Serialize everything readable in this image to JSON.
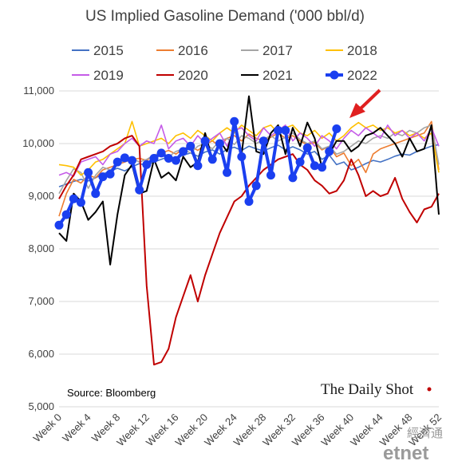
{
  "chart_data": {
    "type": "line",
    "title": "US Implied Gasoline Demand ('000 bbl/d)",
    "ylim": [
      5000,
      11000
    ],
    "yticks": [
      "5,000",
      "6,000",
      "7,000",
      "8,000",
      "9,000",
      "10,000",
      "11,000"
    ],
    "ytick_values": [
      5000,
      6000,
      7000,
      8000,
      9000,
      10000,
      11000
    ],
    "xlim": [
      0,
      52
    ],
    "xticks": [
      "Week 0",
      "Week 4",
      "Week 8",
      "Week 12",
      "Week 16",
      "Week 20",
      "Week 24",
      "Week 28",
      "Week 32",
      "Week 36",
      "Week 40",
      "Week 44",
      "Week 48",
      "Week 52"
    ],
    "xtick_values": [
      0,
      4,
      8,
      12,
      16,
      20,
      24,
      28,
      32,
      36,
      40,
      44,
      48,
      52
    ],
    "grid": "horizontal",
    "legend_position": "top",
    "source": "Source: Bloomberg",
    "brand": "The Daily Shot",
    "watermark": "etnet",
    "watermark_cn": "經濟通",
    "arrow_color": "#e02020",
    "series": [
      {
        "name": "2015",
        "color": "#4472c4",
        "width": 1.6,
        "marker": false,
        "values": [
          9180,
          9230,
          9280,
          9320,
          9290,
          9350,
          9420,
          9480,
          9530,
          9480,
          9560,
          9620,
          9580,
          9650,
          9700,
          9750,
          9720,
          9780,
          9820,
          9760,
          9840,
          9880,
          9800,
          9890,
          9930,
          9870,
          9950,
          9900,
          9860,
          9920,
          9970,
          9880,
          9940,
          9880,
          9800,
          9850,
          9700,
          9780,
          9600,
          9650,
          9500,
          9550,
          9620,
          9680,
          9650,
          9700,
          9760,
          9800,
          9780,
          9850,
          9900,
          9950,
          9980
        ]
      },
      {
        "name": "2016",
        "color": "#ed7d31",
        "width": 1.6,
        "marker": false,
        "values": [
          8620,
          9050,
          9320,
          9250,
          9400,
          9350,
          9500,
          9550,
          9600,
          9650,
          9700,
          9720,
          9680,
          9780,
          9820,
          9870,
          9800,
          9900,
          9950,
          9870,
          9980,
          10050,
          9950,
          10100,
          10150,
          10050,
          10180,
          10100,
          10050,
          10120,
          10200,
          10100,
          10150,
          10050,
          9980,
          10020,
          9880,
          9950,
          9750,
          9820,
          9580,
          9700,
          9450,
          9800,
          9900,
          9950,
          10000,
          10050,
          10100,
          10150,
          10200,
          10420,
          9500
        ]
      },
      {
        "name": "2017",
        "color": "#a5a5a5",
        "width": 1.6,
        "marker": false,
        "values": [
          9050,
          9300,
          9520,
          9450,
          9150,
          9400,
          9550,
          9500,
          9600,
          9680,
          9720,
          9650,
          9700,
          9780,
          9830,
          9750,
          9850,
          9900,
          9820,
          9950,
          10000,
          9900,
          10050,
          10100,
          9980,
          10150,
          10100,
          10000,
          10080,
          10150,
          10050,
          10120,
          10200,
          10080,
          10000,
          10050,
          9900,
          9950,
          9800,
          9850,
          9950,
          10050,
          10000,
          10100,
          10150,
          10100,
          10200,
          10150,
          10250,
          10200,
          10300,
          10350,
          9600
        ]
      },
      {
        "name": "2018",
        "color": "#ffc000",
        "width": 1.6,
        "marker": false,
        "values": [
          9600,
          9580,
          9550,
          9400,
          9500,
          9650,
          9700,
          9800,
          9900,
          10000,
          10420,
          9950,
          10000,
          10050,
          10100,
          10000,
          10150,
          10200,
          10100,
          10250,
          10150,
          10050,
          10200,
          10300,
          10200,
          10350,
          10250,
          10150,
          10300,
          10350,
          10200,
          10300,
          10350,
          10200,
          10150,
          10250,
          10100,
          10200,
          10050,
          10150,
          10300,
          10400,
          10300,
          10350,
          10250,
          10300,
          10200,
          10250,
          10150,
          10200,
          10100,
          10200,
          9450
        ]
      },
      {
        "name": "2019",
        "color": "#c55ce8",
        "width": 1.6,
        "marker": false,
        "values": [
          9400,
          9450,
          9380,
          9650,
          9700,
          9750,
          9600,
          9800,
          9850,
          10000,
          10100,
          9950,
          10050,
          10000,
          10350,
          9900,
          10050,
          10100,
          9950,
          10150,
          10000,
          10100,
          10200,
          9950,
          10250,
          10300,
          10150,
          10050,
          10300,
          10150,
          10250,
          10350,
          10050,
          10200,
          10100,
          9950,
          10150,
          10050,
          9900,
          10100,
          10250,
          10150,
          10300,
          10200,
          10100,
          10350,
          10150,
          10250,
          10100,
          10200,
          10050,
          10300,
          9950
        ]
      },
      {
        "name": "2020",
        "color": "#c00000",
        "width": 2,
        "marker": false,
        "values": [
          8950,
          9200,
          9400,
          9700,
          9750,
          9800,
          9850,
          9950,
          10000,
          10100,
          10150,
          9950,
          7300,
          5800,
          5850,
          6100,
          6700,
          7100,
          7500,
          7000,
          7500,
          7900,
          8300,
          8600,
          8900,
          9000,
          9200,
          9350,
          9500,
          9600,
          9700,
          9750,
          9800,
          9600,
          9500,
          9300,
          9200,
          9050,
          9100,
          9300,
          9700,
          9400,
          9000,
          9100,
          9000,
          9050,
          9350,
          8950,
          8700,
          8500,
          8750,
          8800,
          9050
        ]
      },
      {
        "name": "2021",
        "color": "#000000",
        "width": 2,
        "marker": false,
        "values": [
          8300,
          8150,
          9050,
          8900,
          8550,
          8700,
          8900,
          7700,
          8650,
          9400,
          9600,
          9050,
          9100,
          9700,
          9350,
          9450,
          9300,
          9750,
          9550,
          9650,
          10200,
          9700,
          10050,
          9850,
          10350,
          9800,
          10900,
          9850,
          9800,
          10200,
          10350,
          9800,
          10300,
          9950,
          10400,
          10100,
          9550,
          9800,
          10050,
          10050,
          9850,
          9950,
          10150,
          10200,
          10300,
          10150,
          10000,
          9750,
          10100,
          9850,
          9900,
          10350,
          8650
        ]
      },
      {
        "name": "2022",
        "color": "#1a3ff0",
        "width": 4,
        "marker": true,
        "values": [
          8450,
          8650,
          8950,
          8880,
          9450,
          9050,
          9370,
          9420,
          9650,
          9730,
          9680,
          9120,
          9600,
          9720,
          9820,
          9720,
          9680,
          9850,
          9950,
          9580,
          10050,
          9700,
          10000,
          9450,
          10420,
          9750,
          8900,
          9200,
          10050,
          9400,
          10250,
          10250,
          9350,
          9650,
          9920,
          9580,
          9550,
          9850,
          10280
        ]
      }
    ]
  }
}
